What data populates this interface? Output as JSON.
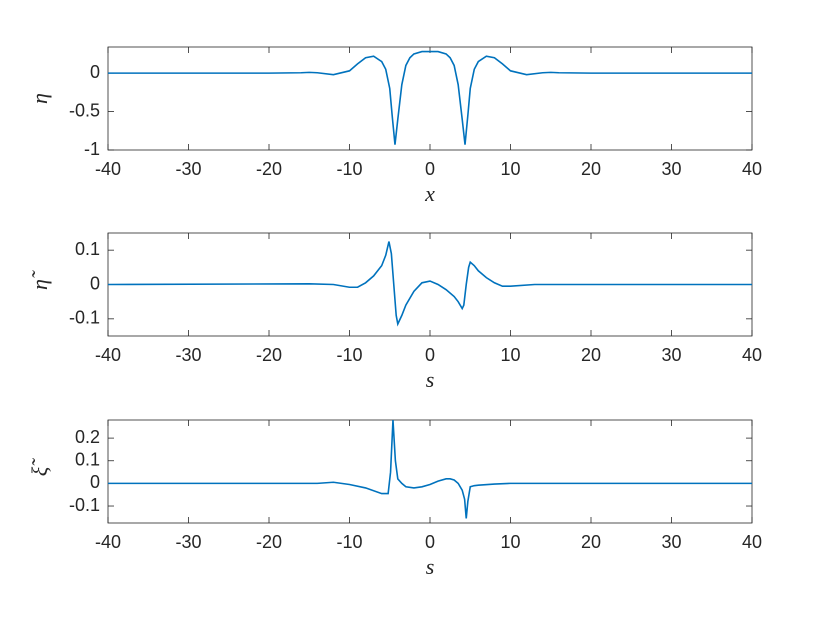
{
  "chart_data": [
    {
      "type": "line",
      "ylabel": "η",
      "xlabel": "x",
      "color": "#0072bd",
      "x": [
        -40,
        -20,
        -16,
        -15,
        -14,
        -12,
        -10,
        -9,
        -8,
        -7,
        -6,
        -5.5,
        -5,
        -4.7,
        -4.35,
        -4,
        -3.5,
        -3,
        -2.5,
        -2,
        -1,
        0,
        1,
        2,
        2.5,
        3,
        3.5,
        4,
        4.35,
        4.7,
        5,
        5.5,
        6,
        7,
        8,
        9,
        10,
        12,
        14,
        15,
        16,
        20,
        40
      ],
      "values": [
        0,
        0,
        0.005,
        0.01,
        0.005,
        -0.02,
        0.03,
        0.12,
        0.2,
        0.22,
        0.15,
        0.05,
        -0.2,
        -0.55,
        -0.93,
        -0.6,
        -0.15,
        0.1,
        0.2,
        0.25,
        0.28,
        0.28,
        0.28,
        0.25,
        0.2,
        0.1,
        -0.15,
        -0.6,
        -0.93,
        -0.55,
        -0.2,
        0.05,
        0.15,
        0.22,
        0.2,
        0.12,
        0.03,
        -0.02,
        0.005,
        0.01,
        0.005,
        0,
        0
      ],
      "xlim": [
        -40,
        40
      ],
      "ylim": [
        -1,
        0.34
      ],
      "xticks": [
        -40,
        -30,
        -20,
        -10,
        0,
        10,
        20,
        30,
        40
      ],
      "yticks": [
        -1,
        -0.5,
        0
      ]
    },
    {
      "type": "line",
      "ylabel": "η̃",
      "xlabel": "s",
      "color": "#0072bd",
      "x": [
        -40,
        -15,
        -12,
        -10,
        -9,
        -8,
        -7,
        -6,
        -5.5,
        -5.1,
        -4.8,
        -4.5,
        -4.2,
        -4,
        -3.5,
        -3,
        -2,
        -1,
        0,
        1,
        2,
        3,
        3.5,
        4,
        4.2,
        4.5,
        4.8,
        5,
        5.5,
        6,
        7,
        8,
        9,
        10,
        13,
        40
      ],
      "values": [
        0,
        0.002,
        0,
        -0.008,
        -0.008,
        0.005,
        0.025,
        0.055,
        0.085,
        0.125,
        0.09,
        0,
        -0.09,
        -0.115,
        -0.09,
        -0.06,
        -0.02,
        0.005,
        0.01,
        0,
        -0.015,
        -0.035,
        -0.05,
        -0.07,
        -0.06,
        0,
        0.05,
        0.065,
        0.055,
        0.04,
        0.02,
        0.005,
        -0.005,
        -0.005,
        0,
        0
      ],
      "xlim": [
        -40,
        40
      ],
      "ylim": [
        -0.15,
        0.15
      ],
      "xticks": [
        -40,
        -30,
        -20,
        -10,
        0,
        10,
        20,
        30,
        40
      ],
      "yticks": [
        -0.1,
        0,
        0.1
      ]
    },
    {
      "type": "line",
      "ylabel": "ξ̃",
      "xlabel": "s",
      "color": "#0072bd",
      "x": [
        -40,
        -14,
        -12,
        -10,
        -8,
        -6,
        -5.2,
        -4.9,
        -4.6,
        -4.3,
        -4,
        -3.5,
        -3,
        -2,
        -1,
        0,
        1,
        2,
        2.5,
        3,
        3.5,
        4,
        4.3,
        4.5,
        4.7,
        5,
        5.5,
        6,
        8,
        10,
        40
      ],
      "values": [
        0,
        0,
        0.005,
        -0.005,
        -0.02,
        -0.045,
        -0.045,
        0.05,
        0.28,
        0.1,
        0.02,
        0,
        -0.015,
        -0.02,
        -0.015,
        -0.005,
        0.01,
        0.02,
        0.02,
        0.015,
        0,
        -0.03,
        -0.07,
        -0.155,
        -0.08,
        -0.015,
        -0.01,
        -0.008,
        -0.003,
        0,
        0
      ],
      "xlim": [
        -40,
        40
      ],
      "ylim": [
        -0.175,
        0.28
      ],
      "xticks": [
        -40,
        -30,
        -20,
        -10,
        0,
        10,
        20,
        30,
        40
      ],
      "yticks": [
        -0.1,
        0,
        0.1,
        0.2
      ]
    }
  ]
}
